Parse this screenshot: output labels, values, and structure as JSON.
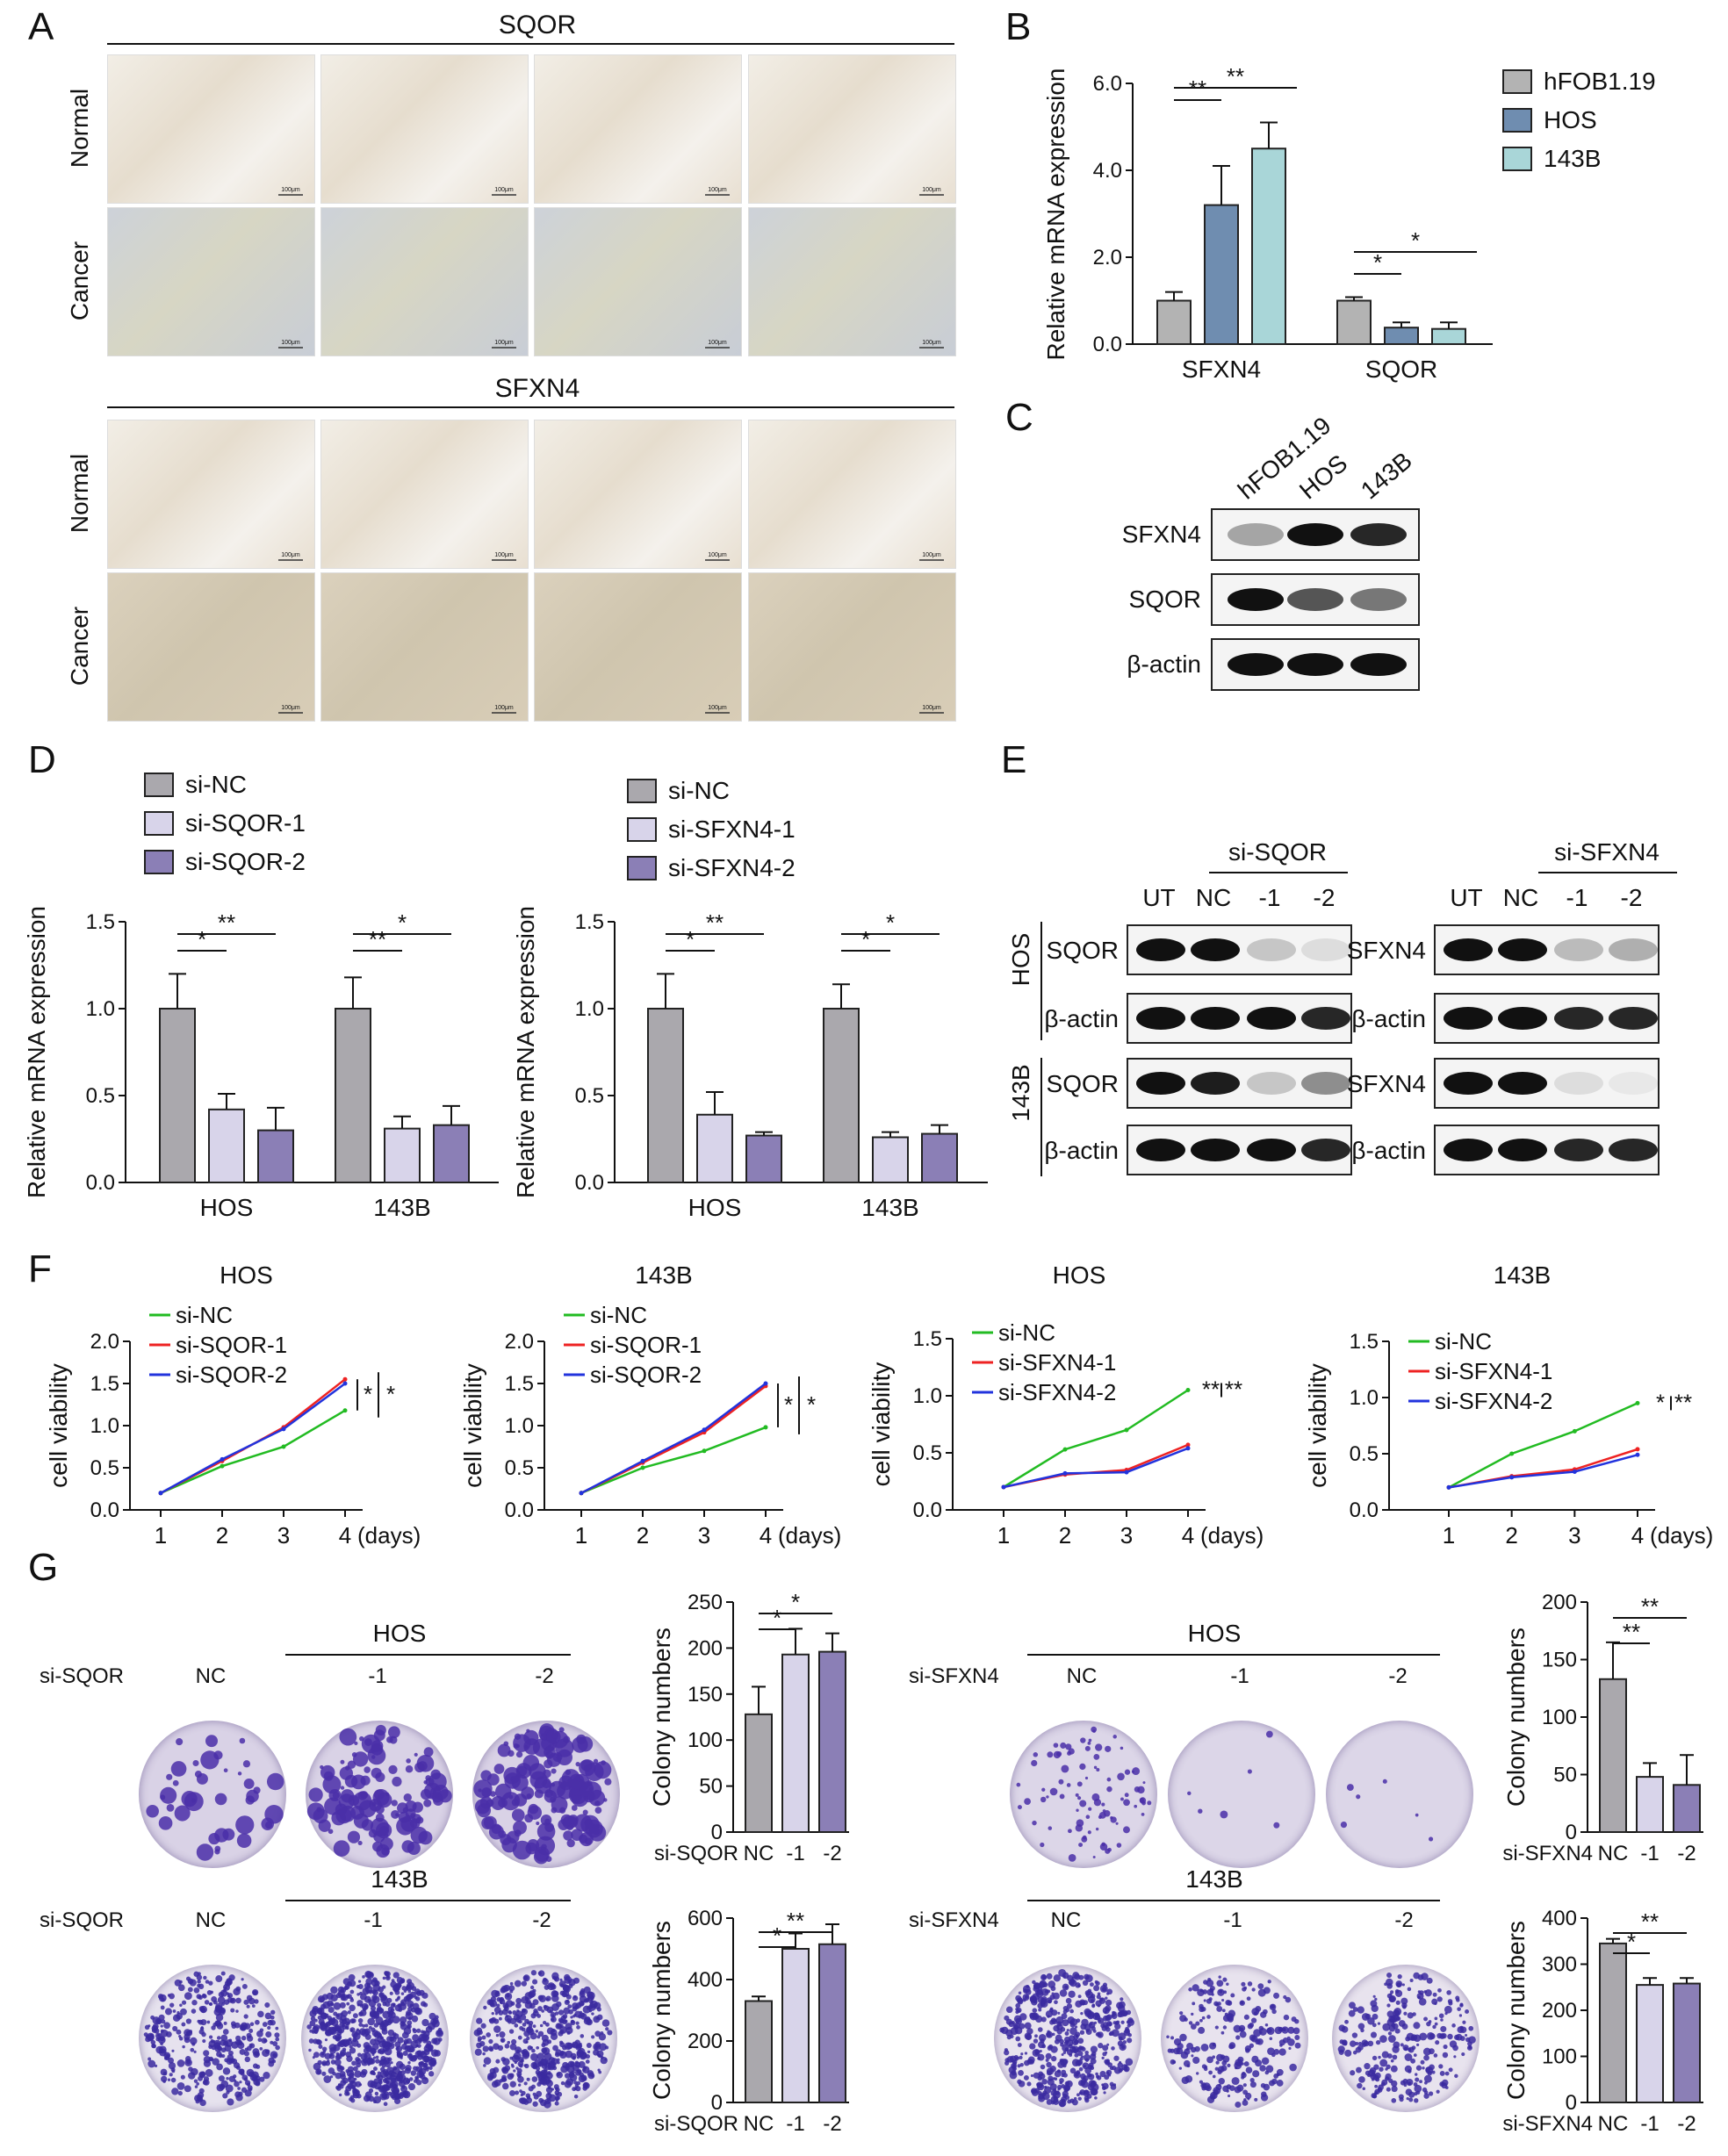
{
  "panel_letters": {
    "A": "A",
    "B": "B",
    "C": "C",
    "D": "D",
    "E": "E",
    "F": "F",
    "G": "G"
  },
  "panel_a": {
    "top_title": "SQOR",
    "bottom_title": "SFXN4",
    "row_labels": [
      "Normal",
      "Cancer",
      "Normal",
      "Cancer"
    ],
    "scale_bar": "100μm"
  },
  "panel_c": {
    "columns": [
      "hFOB1.19",
      "HOS",
      "143B"
    ],
    "rows": [
      "SFXN4",
      "SQOR",
      "β-actin"
    ]
  },
  "panel_e": {
    "left_group": "si-SQOR",
    "right_group": "si-SFXN4",
    "lanes": [
      "UT",
      "NC",
      "-1",
      "-2"
    ],
    "cell_lines": [
      "HOS",
      "143B"
    ],
    "left_rows": [
      "SQOR",
      "β-actin",
      "SQOR",
      "β-actin"
    ],
    "right_rows": [
      "SFXN4",
      "β-actin",
      "SFXN4",
      "β-actin"
    ]
  },
  "panel_g": {
    "cell_lines": [
      "HOS",
      "143B"
    ],
    "left_group": "si-SQOR",
    "right_group": "si-SFXN4",
    "plate_labels": [
      "NC",
      "-1",
      "-2"
    ]
  },
  "colors": {
    "hfob": "#b3b3b3",
    "hos": "#6f8db0",
    "c143b": "#a9d6d8",
    "si_nc": "#aaa8ad",
    "si1": "#d8d4ea",
    "si2": "#8b7fb6",
    "line_nc": "#22bb22",
    "line_1": "#ee2222",
    "line_2": "#2233dd"
  },
  "chart_data": [
    {
      "id": "B",
      "type": "bar",
      "categories": [
        "SFXN4",
        "SQOR"
      ],
      "ylabel": "Relative mRNA expression",
      "ylim": [
        0,
        6
      ],
      "yticks": [
        "0.0",
        "2.0",
        "4.0",
        "6.0"
      ],
      "series": [
        {
          "name": "hFOB1.19",
          "values": [
            1.0,
            1.0
          ],
          "errors": [
            0.2,
            0.08
          ]
        },
        {
          "name": "HOS",
          "values": [
            3.2,
            0.38
          ],
          "errors": [
            0.9,
            0.12
          ]
        },
        {
          "name": "143B",
          "values": [
            4.5,
            0.35
          ],
          "errors": [
            0.6,
            0.15
          ]
        }
      ],
      "significance": [
        "**",
        "**",
        "*",
        "*"
      ]
    },
    {
      "id": "D1",
      "type": "bar",
      "categories": [
        "HOS",
        "143B"
      ],
      "ylabel": "Relative mRNA expression",
      "ylim": [
        0,
        1.5
      ],
      "yticks": [
        "0.0",
        "0.5",
        "1.0",
        "1.5"
      ],
      "series": [
        {
          "name": "si-NC",
          "values": [
            1.0,
            1.0
          ],
          "errors": [
            0.2,
            0.18
          ]
        },
        {
          "name": "si-SQOR-1",
          "values": [
            0.42,
            0.31
          ],
          "errors": [
            0.09,
            0.07
          ]
        },
        {
          "name": "si-SQOR-2",
          "values": [
            0.3,
            0.33
          ],
          "errors": [
            0.13,
            0.11
          ]
        }
      ],
      "significance": [
        "*",
        "**",
        "**",
        "*"
      ]
    },
    {
      "id": "D2",
      "type": "bar",
      "categories": [
        "HOS",
        "143B"
      ],
      "ylabel": "Relative mRNA expression",
      "ylim": [
        0,
        1.5
      ],
      "yticks": [
        "0.0",
        "0.5",
        "1.0",
        "1.5"
      ],
      "series": [
        {
          "name": "si-NC",
          "values": [
            1.0,
            1.0
          ],
          "errors": [
            0.2,
            0.14
          ]
        },
        {
          "name": "si-SFXN4-1",
          "values": [
            0.39,
            0.26
          ],
          "errors": [
            0.13,
            0.03
          ]
        },
        {
          "name": "si-SFXN4-2",
          "values": [
            0.27,
            0.28
          ],
          "errors": [
            0.02,
            0.05
          ]
        }
      ],
      "significance": [
        "*",
        "**",
        "*",
        "*"
      ]
    },
    {
      "id": "F1",
      "type": "line",
      "title": "HOS",
      "x": [
        1,
        2,
        3,
        4
      ],
      "ylabel": "cell viability",
      "xlabel": "(days)",
      "ylim": [
        0,
        2
      ],
      "yticks": [
        "0.0",
        "0.5",
        "1.0",
        "1.5",
        "2.0"
      ],
      "series": [
        {
          "name": "si-NC",
          "values": [
            0.2,
            0.52,
            0.75,
            1.18
          ]
        },
        {
          "name": "si-SQOR-1",
          "values": [
            0.2,
            0.58,
            0.98,
            1.55
          ]
        },
        {
          "name": "si-SQOR-2",
          "values": [
            0.2,
            0.6,
            0.96,
            1.5
          ]
        }
      ],
      "significance": [
        "*",
        "*"
      ]
    },
    {
      "id": "F2",
      "type": "line",
      "title": "143B",
      "x": [
        1,
        2,
        3,
        4
      ],
      "ylabel": "cell viability",
      "xlabel": "(days)",
      "ylim": [
        0,
        2
      ],
      "yticks": [
        "0.0",
        "0.5",
        "1.0",
        "1.5",
        "2.0"
      ],
      "series": [
        {
          "name": "si-NC",
          "values": [
            0.2,
            0.5,
            0.7,
            0.98
          ]
        },
        {
          "name": "si-SQOR-1",
          "values": [
            0.2,
            0.56,
            0.92,
            1.47
          ]
        },
        {
          "name": "si-SQOR-2",
          "values": [
            0.2,
            0.58,
            0.95,
            1.5
          ]
        }
      ],
      "significance": [
        "*",
        "*"
      ]
    },
    {
      "id": "F3",
      "type": "line",
      "title": "HOS",
      "x": [
        1,
        2,
        3,
        4
      ],
      "ylabel": "cell viability",
      "xlabel": "(days)",
      "ylim": [
        0,
        1.5
      ],
      "yticks": [
        "0.0",
        "0.5",
        "1.0",
        "1.5"
      ],
      "series": [
        {
          "name": "si-NC",
          "values": [
            0.2,
            0.53,
            0.7,
            1.05
          ]
        },
        {
          "name": "si-SFXN4-1",
          "values": [
            0.2,
            0.31,
            0.35,
            0.57
          ]
        },
        {
          "name": "si-SFXN4-2",
          "values": [
            0.2,
            0.32,
            0.33,
            0.54
          ]
        }
      ],
      "significance": [
        "**",
        "**"
      ]
    },
    {
      "id": "F4",
      "type": "line",
      "title": "143B",
      "x": [
        1,
        2,
        3,
        4
      ],
      "ylabel": "cell viability",
      "xlabel": "(days)",
      "ylim": [
        0,
        1.5
      ],
      "yticks": [
        "0.0",
        "0.5",
        "1.0",
        "1.5"
      ],
      "series": [
        {
          "name": "si-NC",
          "values": [
            0.2,
            0.5,
            0.7,
            0.95
          ]
        },
        {
          "name": "si-SFXN4-1",
          "values": [
            0.2,
            0.3,
            0.36,
            0.54
          ]
        },
        {
          "name": "si-SFXN4-2",
          "values": [
            0.2,
            0.29,
            0.34,
            0.49
          ]
        }
      ],
      "significance": [
        "*",
        "**"
      ]
    },
    {
      "id": "G1",
      "type": "bar",
      "categories": [
        "NC",
        "-1",
        "-2"
      ],
      "xprefix": "si-SQOR",
      "ylabel": "Colony numbers",
      "ylim": [
        0,
        250
      ],
      "yticks": [
        "0",
        "50",
        "100",
        "150",
        "200",
        "250"
      ],
      "values": [
        128,
        193,
        196
      ],
      "errors": [
        30,
        28,
        20
      ],
      "significance": [
        "*",
        "*"
      ]
    },
    {
      "id": "G2",
      "type": "bar",
      "categories": [
        "NC",
        "-1",
        "-2"
      ],
      "xprefix": "si-SFXN4",
      "ylabel": "Colony numbers",
      "ylim": [
        0,
        200
      ],
      "yticks": [
        "0",
        "50",
        "100",
        "150",
        "200"
      ],
      "values": [
        133,
        48,
        41
      ],
      "errors": [
        32,
        12,
        26
      ],
      "significance": [
        "**",
        "**"
      ]
    },
    {
      "id": "G3",
      "type": "bar",
      "categories": [
        "NC",
        "-1",
        "-2"
      ],
      "xprefix": "si-SQOR",
      "ylabel": "Colony numbers",
      "ylim": [
        0,
        600
      ],
      "yticks": [
        "0",
        "200",
        "400",
        "600"
      ],
      "values": [
        330,
        500,
        515
      ],
      "errors": [
        15,
        50,
        65
      ],
      "significance": [
        "*",
        "**"
      ]
    },
    {
      "id": "G4",
      "type": "bar",
      "categories": [
        "NC",
        "-1",
        "-2"
      ],
      "xprefix": "si-SFXN4",
      "ylabel": "Colony numbers",
      "ylim": [
        0,
        400
      ],
      "yticks": [
        "0",
        "100",
        "200",
        "300",
        "400"
      ],
      "values": [
        345,
        255,
        258
      ],
      "errors": [
        10,
        15,
        12
      ],
      "significance": [
        "*",
        "**"
      ]
    }
  ]
}
